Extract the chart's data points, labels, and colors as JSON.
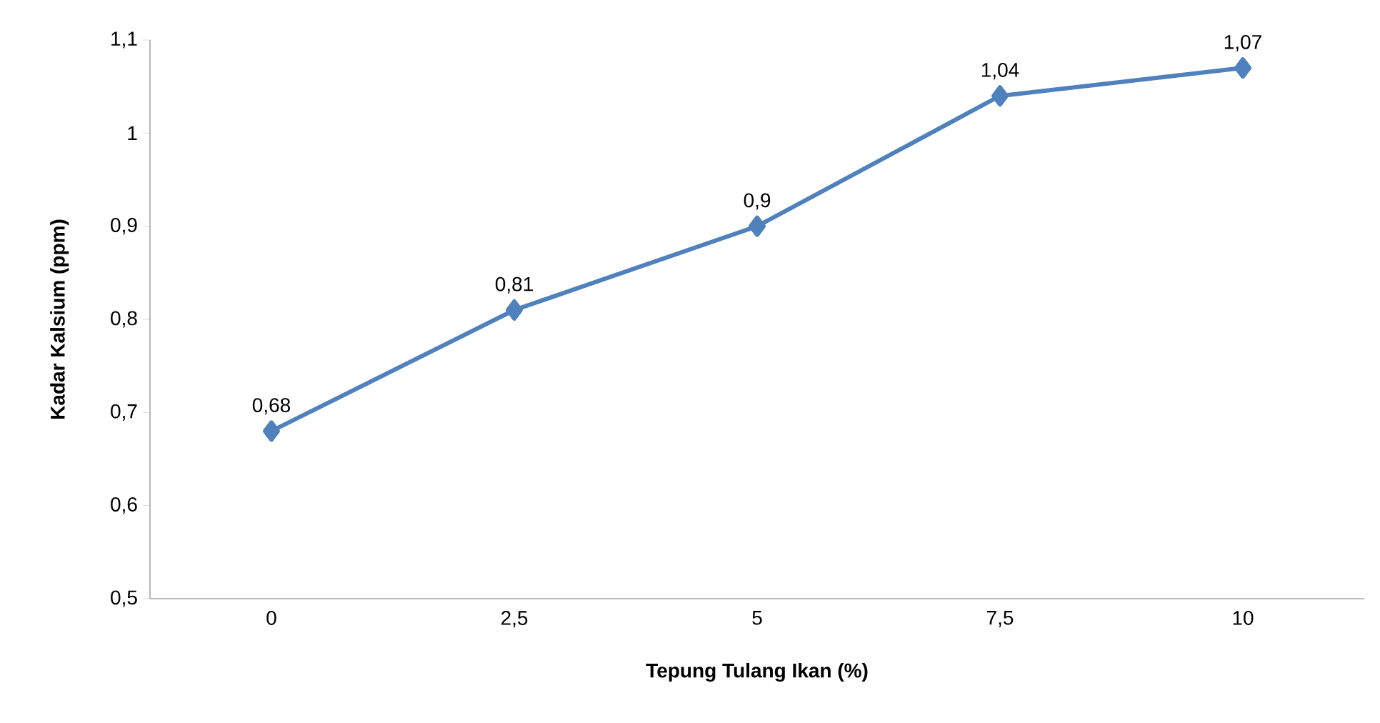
{
  "chart_data": {
    "type": "line",
    "xlabel": "Tepung Tulang Ikan (%)",
    "ylabel": "Kadar Kalsium (ppm)",
    "categories": [
      "0",
      "2,5",
      "5",
      "7,5",
      "10"
    ],
    "values": [
      0.68,
      0.81,
      0.9,
      1.04,
      1.07
    ],
    "value_labels": [
      "0,68",
      "0,81",
      "0,9",
      "1,04",
      "1,07"
    ],
    "color": "#4f81bd",
    "marker": "diamond",
    "line_style": "solid",
    "grid": false,
    "ylim": [
      0.5,
      1.1
    ],
    "yticks": [
      {
        "value": 0.5,
        "label": "0,5"
      },
      {
        "value": 0.6,
        "label": "0,6"
      },
      {
        "value": 0.7,
        "label": "0,7"
      },
      {
        "value": 0.8,
        "label": "0,8"
      },
      {
        "value": 0.9,
        "label": "0,9"
      },
      1,
      {
        "value": 1.1,
        "label": "1,1"
      }
    ]
  }
}
